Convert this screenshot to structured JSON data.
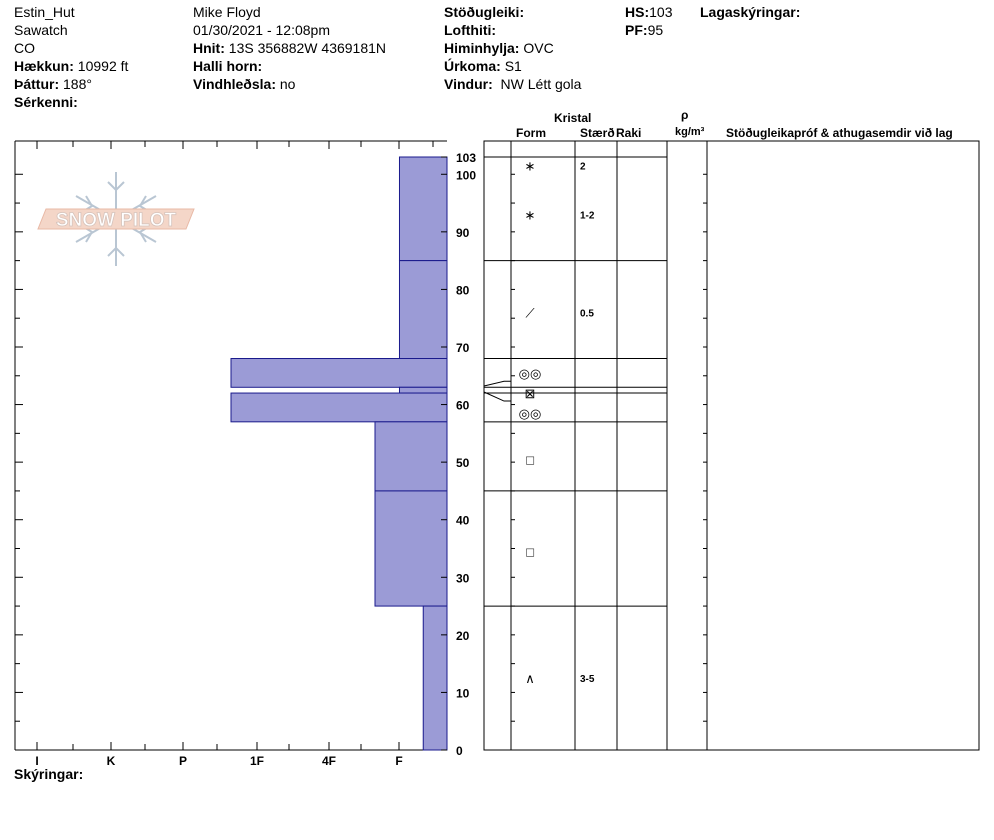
{
  "header": {
    "location": "Estin_Hut",
    "range": "Sawatch",
    "state": "CO",
    "elevation_label": "Hækkun:",
    "elevation_value": "10992 ft",
    "aspect_label": "Þáttur:",
    "aspect_value": "188°",
    "features_label": "Sérkenni:",
    "observer": "Mike Floyd",
    "datetime": "01/30/2021 - 12:08pm",
    "coords_label": "Hnit:",
    "coords_value": "13S 356882W 4369181N",
    "slope_label": "Halli horn:",
    "wind_loading_label": "Vindhleðsla:",
    "wind_loading_value": "no",
    "stability_label": "Stöðugleiki:",
    "air_temp_label": "Lofthiti:",
    "sky_label": "Himinhylja:",
    "sky_value": "OVC",
    "precip_label": "Úrkoma:",
    "precip_value": "S1",
    "wind_label": "Vindur:",
    "wind_value": "NW Létt gola",
    "hs_label": "HS:",
    "hs_value": "103",
    "pf_label": "PF:",
    "pf_value": "95",
    "layer_notes_label": "Lagaskýringar:"
  },
  "footer": {
    "notes_label": "Skýringar:"
  },
  "logo": {
    "text": "SNOW PILOT"
  },
  "columns": {
    "crystal": "Kristal",
    "form": "Form",
    "size": "Stærð",
    "moisture": "Raki",
    "rho": "ρ",
    "density_unit": "kg/m³",
    "comments": "Stöðugleikapróf & athugasemdir við lag"
  },
  "colors": {
    "bar_fill": "#9b9bd6",
    "bar_stroke": "#1a1a8c",
    "grid": "#000000"
  },
  "chart_data": {
    "type": "bar",
    "orientation": "horizontal",
    "hardness_scale": [
      "I",
      "K",
      "P",
      "1F",
      "4F",
      "F"
    ],
    "hardness_scale_direction": "right-to-left",
    "ylim": [
      0,
      103
    ],
    "y_ticks": [
      0,
      10,
      20,
      30,
      40,
      50,
      60,
      70,
      80,
      90,
      100,
      103
    ],
    "layers": [
      {
        "top": 103,
        "bottom": 85,
        "hardness": 0.66,
        "form": "*",
        "size": "2-1-2",
        "top_size": "2",
        "main_size": "1-2"
      },
      {
        "top": 85,
        "bottom": 68,
        "hardness": 0.66,
        "form": "/",
        "size": "0.5"
      },
      {
        "top": 68,
        "bottom": 63,
        "hardness": 3.0,
        "form": "◎◎",
        "size": ""
      },
      {
        "top": 63,
        "bottom": 62,
        "hardness": 0.66,
        "form": "⊠",
        "size": ""
      },
      {
        "top": 62,
        "bottom": 57,
        "hardness": 3.0,
        "form": "◎◎",
        "size": ""
      },
      {
        "top": 57,
        "bottom": 45,
        "hardness": 1.0,
        "form": "□",
        "size": ""
      },
      {
        "top": 45,
        "bottom": 25,
        "hardness": 1.0,
        "form": "□",
        "size": ""
      },
      {
        "top": 25,
        "bottom": 0,
        "hardness": 0.33,
        "form": "^",
        "size": "3-5"
      }
    ],
    "grain_marks": [
      {
        "symbol": "∗",
        "size": "2",
        "height": 101.5
      },
      {
        "symbol": "∗",
        "size": "1-2",
        "height": 93
      },
      {
        "symbol": "⟋",
        "size": "0.5",
        "height": 76
      },
      {
        "symbol": "◎◎",
        "size": "",
        "height": 65.5
      },
      {
        "symbol": "⊠",
        "size": "",
        "height": 62
      },
      {
        "symbol": "◎◎",
        "size": "",
        "height": 58.5
      },
      {
        "symbol": "□",
        "size": "",
        "height": 50.5
      },
      {
        "symbol": "□",
        "size": "",
        "height": 34.5
      },
      {
        "symbol": "∧",
        "size": "3-5",
        "height": 12.5
      }
    ],
    "title": "",
    "xlabel": "",
    "ylabel": ""
  }
}
